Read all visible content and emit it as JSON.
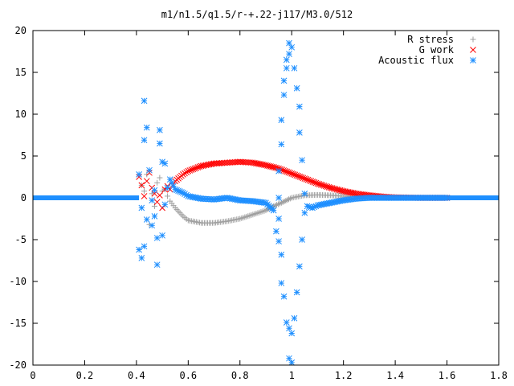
{
  "chart_data": {
    "type": "scatter",
    "title": "m1/n1.5/q1.5/r-+.22-j117/M3.0/512",
    "xlabel": "",
    "ylabel": "",
    "xlim": [
      0,
      1.8
    ],
    "ylim": [
      -20,
      20
    ],
    "grid": false,
    "legend_position": "top-right",
    "x_ticks": [
      "0",
      "0.2",
      "0.4",
      "0.6",
      "0.8",
      "1",
      "1.2",
      "1.4",
      "1.6",
      "1.8"
    ],
    "y_ticks": [
      "20",
      "15",
      "10",
      "5",
      "0",
      "-5",
      "-10",
      "-15",
      "-20"
    ],
    "series": [
      {
        "name": "R stress",
        "marker": "plus",
        "color": "#a0a0a0",
        "points": [
          [
            0.42,
            1.5
          ],
          [
            0.43,
            0.8
          ],
          [
            0.44,
            2.8
          ],
          [
            0.45,
            -3.2
          ],
          [
            0.46,
            0.5
          ],
          [
            0.47,
            -1.0
          ],
          [
            0.48,
            1.8
          ],
          [
            0.49,
            2.4
          ],
          [
            0.5,
            0.8
          ],
          [
            0.51,
            1.0
          ],
          [
            0.52,
            0.2
          ],
          [
            0.53,
            -0.4
          ],
          [
            0.55,
            -1.2
          ],
          [
            0.58,
            -2.2
          ],
          [
            0.6,
            -2.7
          ],
          [
            0.65,
            -3.0
          ],
          [
            0.7,
            -3.0
          ],
          [
            0.75,
            -2.8
          ],
          [
            0.8,
            -2.5
          ],
          [
            0.85,
            -2.0
          ],
          [
            0.9,
            -1.5
          ],
          [
            0.93,
            -1.0
          ],
          [
            0.96,
            -0.6
          ],
          [
            1.0,
            0.0
          ],
          [
            1.05,
            0.3
          ],
          [
            1.1,
            0.35
          ],
          [
            1.15,
            0.3
          ],
          [
            1.2,
            0.2
          ],
          [
            1.25,
            0.1
          ],
          [
            1.3,
            0.05
          ],
          [
            1.4,
            0.0
          ],
          [
            1.6,
            0.0
          ]
        ]
      },
      {
        "name": "G work",
        "marker": "cross",
        "color": "#ff0000",
        "points": [
          [
            0.41,
            2.5
          ],
          [
            0.42,
            1.5
          ],
          [
            0.43,
            0.2
          ],
          [
            0.44,
            2.0
          ],
          [
            0.45,
            3.0
          ],
          [
            0.46,
            1.2
          ],
          [
            0.47,
            0.5
          ],
          [
            0.48,
            -0.5
          ],
          [
            0.49,
            0.3
          ],
          [
            0.5,
            -1.2
          ],
          [
            0.51,
            1.0
          ],
          [
            0.52,
            1.4
          ],
          [
            0.53,
            1.0
          ],
          [
            0.54,
            1.5
          ],
          [
            0.55,
            2.0
          ],
          [
            0.58,
            2.8
          ],
          [
            0.6,
            3.2
          ],
          [
            0.65,
            3.8
          ],
          [
            0.7,
            4.1
          ],
          [
            0.75,
            4.2
          ],
          [
            0.8,
            4.3
          ],
          [
            0.85,
            4.2
          ],
          [
            0.9,
            3.9
          ],
          [
            0.95,
            3.5
          ],
          [
            1.0,
            2.9
          ],
          [
            1.05,
            2.3
          ],
          [
            1.1,
            1.7
          ],
          [
            1.15,
            1.2
          ],
          [
            1.2,
            0.8
          ],
          [
            1.25,
            0.5
          ],
          [
            1.3,
            0.3
          ],
          [
            1.35,
            0.15
          ],
          [
            1.4,
            0.05
          ],
          [
            1.5,
            0.0
          ],
          [
            1.6,
            0.0
          ]
        ]
      },
      {
        "name": "Acoustic flux",
        "marker": "star",
        "color": "#1e8fff",
        "points": [
          [
            0.41,
            2.8
          ],
          [
            0.41,
            -6.2
          ],
          [
            0.42,
            -7.2
          ],
          [
            0.42,
            -1.2
          ],
          [
            0.43,
            6.9
          ],
          [
            0.43,
            -5.8
          ],
          [
            0.43,
            11.6
          ],
          [
            0.44,
            8.4
          ],
          [
            0.44,
            -2.6
          ],
          [
            0.45,
            3.3
          ],
          [
            0.46,
            -0.3
          ],
          [
            0.46,
            -3.3
          ],
          [
            0.47,
            0.9
          ],
          [
            0.47,
            -2.2
          ],
          [
            0.48,
            -8.0
          ],
          [
            0.48,
            -4.8
          ],
          [
            0.49,
            8.1
          ],
          [
            0.49,
            6.5
          ],
          [
            0.5,
            -4.5
          ],
          [
            0.5,
            4.3
          ],
          [
            0.51,
            4.1
          ],
          [
            0.51,
            -0.8
          ],
          [
            0.52,
            1.2
          ],
          [
            0.53,
            2.2
          ],
          [
            0.55,
            1.0
          ],
          [
            0.58,
            0.6
          ],
          [
            0.6,
            0.2
          ],
          [
            0.65,
            -0.1
          ],
          [
            0.7,
            -0.2
          ],
          [
            0.75,
            0.0
          ],
          [
            0.8,
            -0.3
          ],
          [
            0.85,
            -0.4
          ],
          [
            0.9,
            -0.6
          ],
          [
            0.93,
            -1.5
          ],
          [
            0.94,
            -4.0
          ],
          [
            0.95,
            -5.2
          ],
          [
            0.95,
            -2.5
          ],
          [
            0.95,
            0.0
          ],
          [
            0.95,
            3.2
          ],
          [
            0.96,
            -6.8
          ],
          [
            0.96,
            -10.2
          ],
          [
            0.96,
            6.4
          ],
          [
            0.96,
            9.3
          ],
          [
            0.97,
            -11.8
          ],
          [
            0.97,
            12.3
          ],
          [
            0.97,
            14.0
          ],
          [
            0.98,
            -14.9
          ],
          [
            0.98,
            15.5
          ],
          [
            0.98,
            16.5
          ],
          [
            0.99,
            -15.6
          ],
          [
            0.99,
            17.2
          ],
          [
            0.99,
            -19.2
          ],
          [
            0.99,
            18.5
          ],
          [
            1.0,
            -19.7
          ],
          [
            1.0,
            18.0
          ],
          [
            1.0,
            -16.2
          ],
          [
            1.01,
            15.5
          ],
          [
            1.01,
            -14.4
          ],
          [
            1.02,
            13.1
          ],
          [
            1.02,
            -11.3
          ],
          [
            1.03,
            10.9
          ],
          [
            1.03,
            -8.2
          ],
          [
            1.03,
            7.8
          ],
          [
            1.04,
            4.5
          ],
          [
            1.04,
            -5.0
          ],
          [
            1.05,
            0.5
          ],
          [
            1.05,
            -1.8
          ],
          [
            1.06,
            -1.0
          ],
          [
            1.08,
            -1.2
          ],
          [
            1.1,
            -0.9
          ],
          [
            1.15,
            -0.6
          ],
          [
            1.2,
            -0.3
          ],
          [
            1.25,
            -0.1
          ],
          [
            1.3,
            0.0
          ],
          [
            1.4,
            0.0
          ],
          [
            1.5,
            0.0
          ],
          [
            1.6,
            0.0
          ]
        ]
      }
    ]
  }
}
